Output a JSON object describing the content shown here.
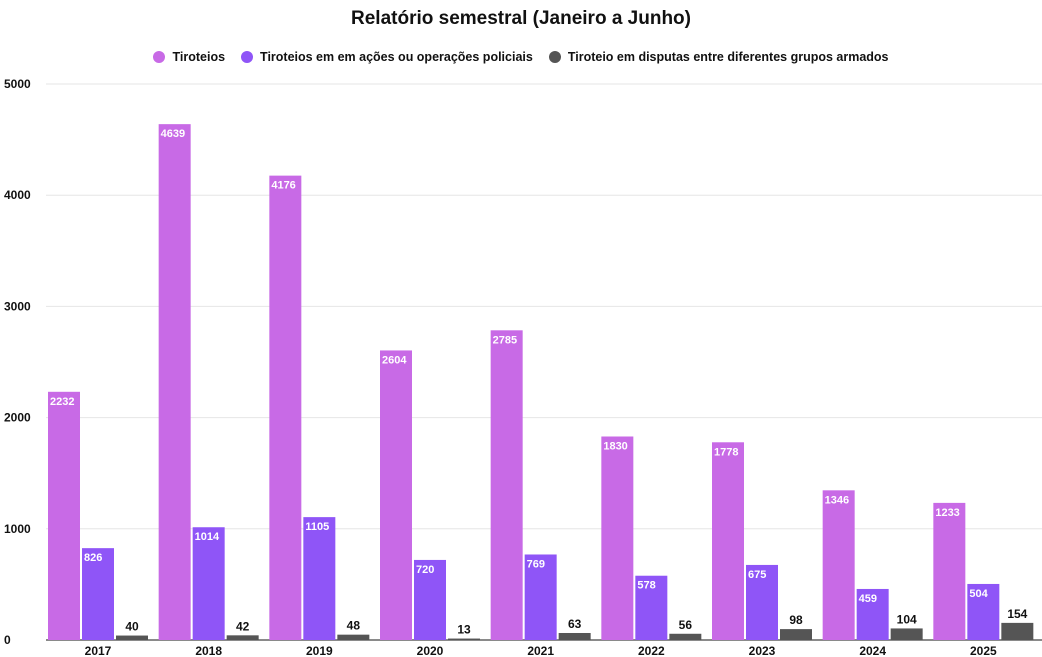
{
  "chart_data": {
    "type": "bar",
    "title": "Relatório semestral (Janeiro a Junho)",
    "xlabel": "",
    "ylabel": "",
    "categories": [
      "2017",
      "2018",
      "2019",
      "2020",
      "2021",
      "2022",
      "2023",
      "2024",
      "2025"
    ],
    "yticks": [
      "0",
      "1000",
      "2000",
      "3000",
      "4000",
      "5000"
    ],
    "ylim": [
      0,
      5000
    ],
    "grid": true,
    "legend_position": "top-center",
    "series": [
      {
        "name": "Tiroteios",
        "color": "#c86ae6",
        "values": [
          2232,
          4639,
          4176,
          2604,
          2785,
          1830,
          1778,
          1346,
          1233
        ]
      },
      {
        "name": "Tiroteios em em ações ou operações policiais",
        "color": "#8f55f7",
        "values": [
          826,
          1014,
          1105,
          720,
          769,
          578,
          675,
          459,
          504
        ]
      },
      {
        "name": "Tiroteio em disputas entre diferentes grupos armados",
        "color": "#555555",
        "values": [
          40,
          42,
          48,
          13,
          63,
          56,
          98,
          104,
          154
        ]
      }
    ]
  }
}
